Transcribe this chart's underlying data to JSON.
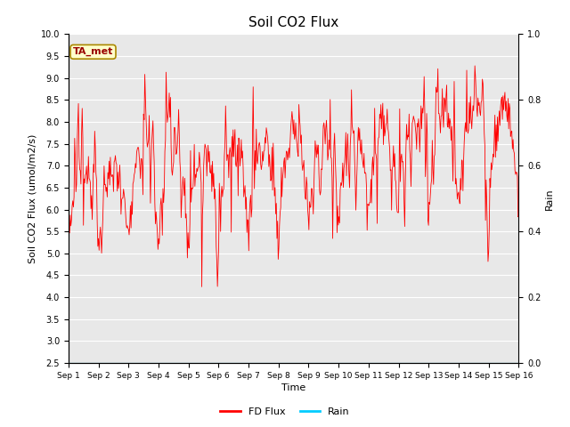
{
  "title": "Soil CO2 Flux",
  "ylabel_left": "Soil CO2 Flux (umol/m2/s)",
  "ylabel_right": "Rain",
  "xlabel": "Time",
  "ylim_left": [
    2.5,
    10.0
  ],
  "ylim_right": [
    0.0,
    1.0
  ],
  "yticks_left": [
    2.5,
    3.0,
    3.5,
    4.0,
    4.5,
    5.0,
    5.5,
    6.0,
    6.5,
    7.0,
    7.5,
    8.0,
    8.5,
    9.0,
    9.5,
    10.0
  ],
  "yticks_right": [
    0.0,
    0.2,
    0.4,
    0.6,
    0.8,
    1.0
  ],
  "xtick_labels": [
    "Sep 1",
    "Sep 2",
    "Sep 3",
    "Sep 4",
    "Sep 5",
    "Sep 6",
    "Sep 7",
    "Sep 8",
    "Sep 9",
    "Sep 10",
    "Sep 11",
    "Sep 12",
    "Sep 13",
    "Sep 14",
    "Sep 15",
    "Sep 16"
  ],
  "flux_color": "#FF0000",
  "rain_color": "#00CCFF",
  "background_color": "#E8E8E8",
  "figure_background": "#FFFFFF",
  "annotation_text": "TA_met",
  "annotation_bg": "#FFFFCC",
  "annotation_border": "#AA8800",
  "annotation_text_color": "#990000",
  "legend_items": [
    "FD Flux",
    "Rain"
  ],
  "title_fontsize": 11,
  "axis_label_fontsize": 8,
  "tick_fontsize": 7,
  "legend_fontsize": 8
}
